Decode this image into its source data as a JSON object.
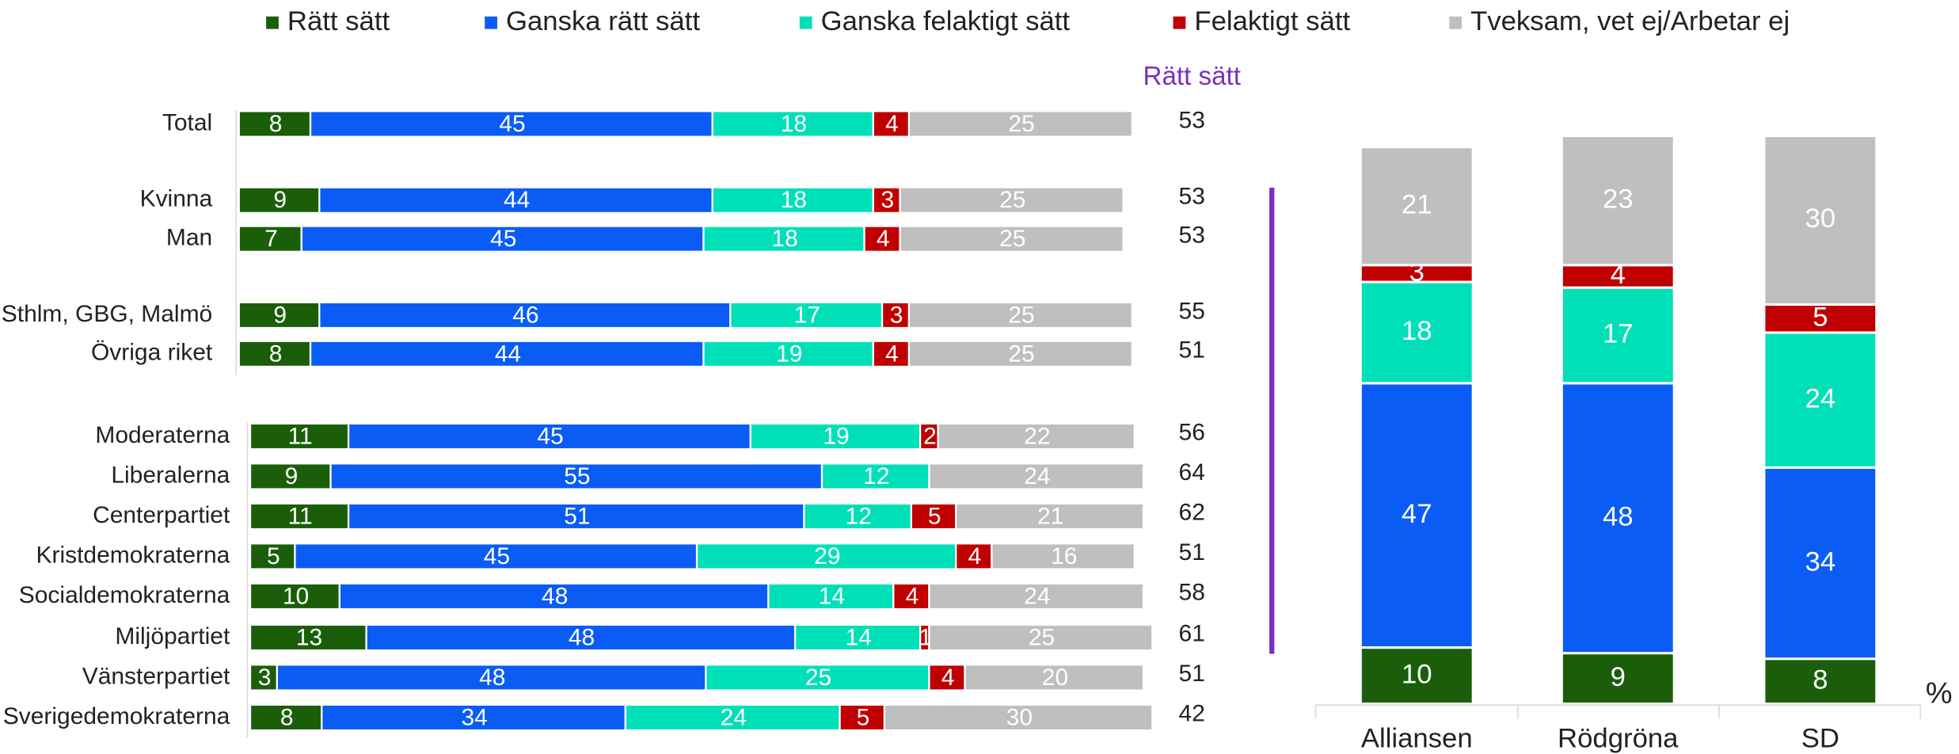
{
  "chart_data": [
    {
      "type": "hbar-stacked",
      "categories": [
        "Total",
        "Kvinna",
        "Man",
        "Sthlm, GBG, Malmö",
        "Övriga riket",
        "Moderaterna",
        "Liberalerna",
        "Centerpartiet",
        "Kristdemokraterna",
        "Socialdemokraterna",
        "Miljöpartiet",
        "Vänsterpartiet",
        "Sverigedemokraterna"
      ],
      "xlim": [
        0,
        100
      ],
      "series": [
        {
          "name": "Rätt sätt",
          "color": "#1a5e0a",
          "values": [
            8,
            9,
            7,
            9,
            8,
            11,
            9,
            11,
            5,
            10,
            13,
            3,
            8
          ]
        },
        {
          "name": "Ganska rätt sätt",
          "color": "#0a5cf5",
          "values": [
            45,
            44,
            45,
            46,
            44,
            45,
            55,
            51,
            45,
            48,
            48,
            48,
            34
          ]
        },
        {
          "name": "Ganska felaktigt sätt",
          "color": "#00e0b8",
          "values": [
            18,
            18,
            18,
            17,
            19,
            19,
            12,
            12,
            29,
            14,
            14,
            25,
            24
          ]
        },
        {
          "name": "Felaktigt sätt",
          "color": "#c00000",
          "values": [
            4,
            3,
            4,
            3,
            4,
            2,
            null,
            5,
            4,
            4,
            1,
            4,
            5
          ]
        },
        {
          "name": "Tveksam, vet ej/Arbetar ej",
          "color": "#bfbfbf",
          "values": [
            25,
            25,
            25,
            25,
            25,
            22,
            24,
            21,
            16,
            24,
            25,
            20,
            30
          ]
        }
      ],
      "totals": {
        "label": "Rätt sätt",
        "values": [
          53,
          53,
          53,
          55,
          51,
          56,
          64,
          62,
          51,
          58,
          61,
          51,
          42
        ]
      }
    },
    {
      "type": "vbar-stacked",
      "categories": [
        "Alliansen",
        "Rödgröna",
        "SD"
      ],
      "ylim": [
        0,
        100
      ],
      "unit_label": "%",
      "series": [
        {
          "color": "#1a5e0a",
          "values": [
            10,
            9,
            8
          ]
        },
        {
          "color": "#0a5cf5",
          "values": [
            47,
            48,
            34
          ]
        },
        {
          "color": "#00e0b8",
          "values": [
            18,
            17,
            24
          ]
        },
        {
          "color": "#c00000",
          "values": [
            3,
            4,
            5
          ]
        },
        {
          "color": "#bfbfbf",
          "values": [
            21,
            23,
            30
          ]
        }
      ]
    }
  ]
}
